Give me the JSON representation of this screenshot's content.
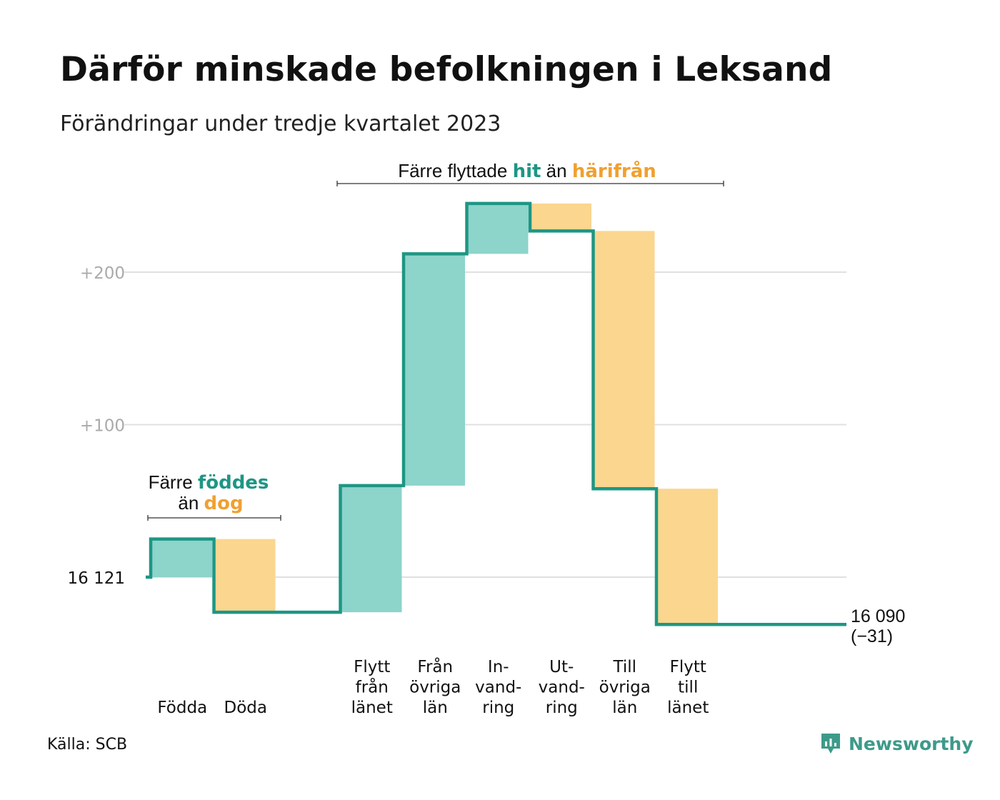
{
  "title": "Därför minskade befolkningen i Leksand",
  "subtitle": "Förändringar under tredje kvartalet 2023",
  "source": "Källa: SCB",
  "logo": {
    "name": "Newsworthy",
    "icon": "newsworthy-logo-icon"
  },
  "colors": {
    "increase_fill": "#8dd4cb",
    "decrease_fill": "#fad68f",
    "line": "#1e9684",
    "hit_text": "#1e9684",
    "harifran_text": "#f0a030",
    "grid": "#e0e0e0",
    "tick_text": "#aaaaaa"
  },
  "annotations": {
    "natural": {
      "line1_prefix": "Färre ",
      "line1_emph": "föddes",
      "line2_prefix": "än ",
      "line2_emph": "dog"
    },
    "migration": {
      "prefix": "Färre flyttade ",
      "emph1": "hit",
      "middle": " än ",
      "emph2": "härifrån"
    }
  },
  "chart_data": {
    "type": "waterfall",
    "baseline": 16121,
    "baseline_label": "16 121",
    "end_value": 16090,
    "end_label": "16 090",
    "end_change_label": "(−31)",
    "y_ticks": [
      {
        "value": 200,
        "label": "+200"
      },
      {
        "value": 100,
        "label": "+100"
      }
    ],
    "ylim": [
      -35,
      245
    ],
    "steps": [
      {
        "label": [
          "Födda"
        ],
        "change": 25
      },
      {
        "label": [
          "Döda"
        ],
        "change": -48
      },
      {
        "label": [],
        "change": 0
      },
      {
        "label": [
          "Flytt",
          "från",
          "länet"
        ],
        "change": 83
      },
      {
        "label": [
          "Från",
          "övriga",
          "län"
        ],
        "change": 152
      },
      {
        "label": [
          "In-",
          "vand-",
          "ring"
        ],
        "change": 33
      },
      {
        "label": [
          "Ut-",
          "vand-",
          "ring"
        ],
        "change": -18
      },
      {
        "label": [
          "Till",
          "övriga",
          "län"
        ],
        "change": -169
      },
      {
        "label": [
          "Flytt",
          "till",
          "länet"
        ],
        "change": -89
      },
      {
        "label": [],
        "change": 0
      }
    ]
  }
}
